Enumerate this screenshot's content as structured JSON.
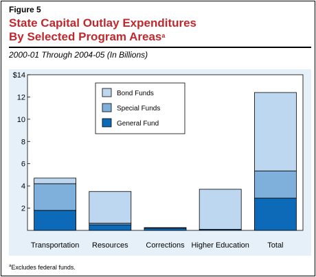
{
  "figure_label": "Figure 5",
  "title_line1": "State Capital Outlay Expenditures",
  "title_line2": "By Selected Program Areas",
  "title_note_marker": "a",
  "subtitle": "2000-01 Through 2004-05 (In Billions)",
  "footnote_marker": "a",
  "footnote_text": "Excludes federal funds.",
  "colors": {
    "title": "#c0282d",
    "bond_funds": "#bcd7ef",
    "special_funds": "#7fb0dc",
    "general_fund": "#0c6ab8",
    "panel": "#e6f0f8"
  },
  "chart_data": {
    "type": "bar",
    "stacked": true,
    "categories": [
      "Transportation",
      "Resources",
      "Corrections",
      "Higher Education",
      "Total"
    ],
    "series": [
      {
        "name": "General Fund",
        "color": "#0c6ab8",
        "values": [
          1.8,
          0.5,
          0.2,
          0.1,
          2.9
        ]
      },
      {
        "name": "Special Funds",
        "color": "#7fb0dc",
        "values": [
          2.4,
          0.15,
          0.0,
          0.0,
          2.45
        ]
      },
      {
        "name": "Bond Funds",
        "color": "#bcd7ef",
        "values": [
          0.5,
          2.85,
          0.05,
          3.6,
          7.05
        ]
      }
    ],
    "y_tick_labels": [
      "$14",
      "12",
      "10",
      "8",
      "6",
      "4",
      "2"
    ],
    "y_tick_values": [
      14,
      12,
      10,
      8,
      6,
      4,
      2
    ],
    "ylim": [
      0,
      14
    ],
    "legend_order": [
      "Bond Funds",
      "Special Funds",
      "General Fund"
    ],
    "legend_position": "top-left",
    "grid": false
  }
}
